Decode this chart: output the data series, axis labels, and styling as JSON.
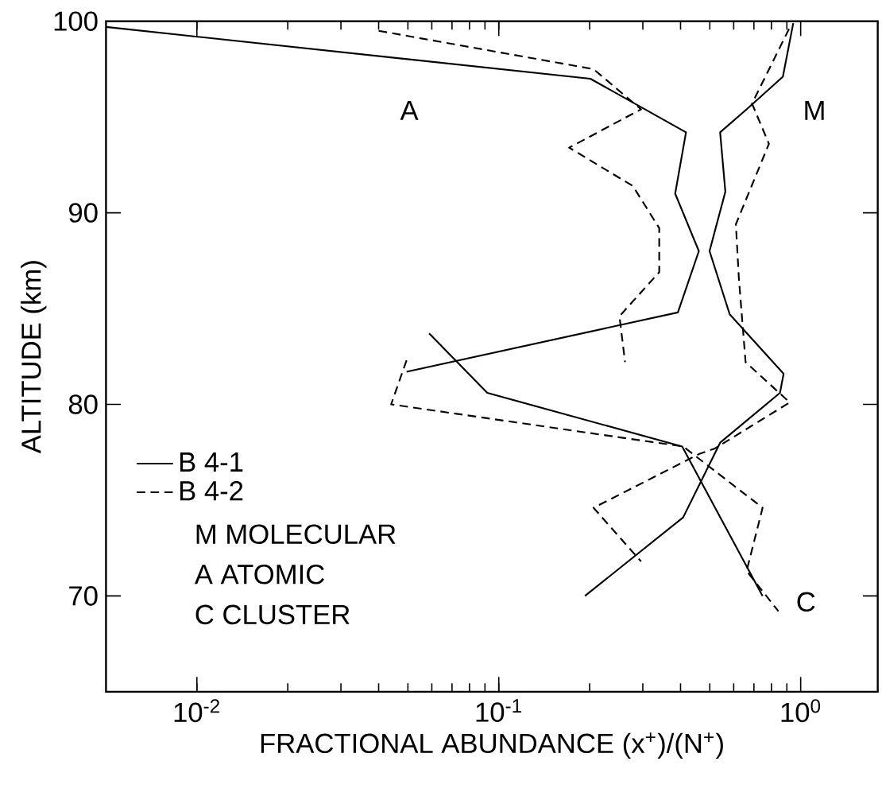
{
  "chart_data": {
    "type": "line",
    "log": "x",
    "xlabel": "FRACTIONAL ABUNDANCE (x$^{+}$)/(N$^{+}$)",
    "ylabel": "ALTITUDE (km)",
    "xlim": [
      0.005,
      1.8
    ],
    "ylim": [
      65,
      100
    ],
    "xticks": [
      {
        "value": 0.01,
        "label": "10$^{-2}$"
      },
      {
        "value": 0.1,
        "label": "10$^{-1}$"
      },
      {
        "value": 1,
        "label": "10$^{0}$"
      }
    ],
    "yticks": [
      70,
      80,
      90,
      100
    ],
    "legend": "left",
    "series": [
      {
        "name": "B 4-1",
        "color": "#000000",
        "line_style": "solid",
        "x": [
          0.005,
          0.201,
          0.417,
          0.384,
          0.46,
          0.392,
          0.0495
        ],
        "values": [
          99.7,
          97.0,
          94.2,
          91.0,
          88.0,
          84.8,
          81.7
        ]
      },
      {
        "name": "B 4-2",
        "color": "#000000",
        "line_style": "dashed",
        "x": [
          0.04,
          0.206,
          0.296,
          0.171,
          0.278,
          0.34,
          0.34,
          0.251,
          0.262
        ],
        "values": [
          99.5,
          97.5,
          95.4,
          93.4,
          91.4,
          89.2,
          86.9,
          84.6,
          82.2
        ]
      },
      {
        "color": "#000000",
        "line_style": "solid",
        "x": [
          0.945,
          0.873,
          0.662,
          0.541,
          0.563,
          0.499,
          0.582,
          0.878,
          0.854,
          0.541,
          0.408,
          0.193
        ],
        "values": [
          99.9,
          97.1,
          95.4,
          94.2,
          91.1,
          88.0,
          84.7,
          81.6,
          80.6,
          78.0,
          74.1,
          70.0
        ]
      },
      {
        "color": "#000000",
        "line_style": "dashed",
        "x": [
          0.915,
          0.69,
          0.785,
          0.61,
          0.624,
          0.657,
          0.92,
          0.52,
          0.46,
          0.206,
          0.296
        ],
        "values": [
          99.6,
          95.7,
          93.6,
          89.4,
          86.6,
          82.2,
          80.1,
          77.7,
          77.4,
          74.6,
          71.8
        ]
      },
      {
        "color": "#000000",
        "line_style": "solid",
        "x": [
          0.0588,
          0.0916,
          0.405,
          0.748
        ],
        "values": [
          83.7,
          80.6,
          77.8,
          70.0
        ]
      },
      {
        "color": "#000000",
        "line_style": "dashed",
        "x": [
          0.0495,
          0.044,
          0.408,
          0.748,
          0.662,
          0.844
        ],
        "values": [
          82.3,
          80.0,
          77.8,
          74.6,
          71.3,
          69.2
        ]
      }
    ],
    "annotations": [
      "A",
      "M",
      "C",
      "M  MOLECULAR",
      "A  ATOMIC",
      "C  CLUSTER"
    ]
  }
}
